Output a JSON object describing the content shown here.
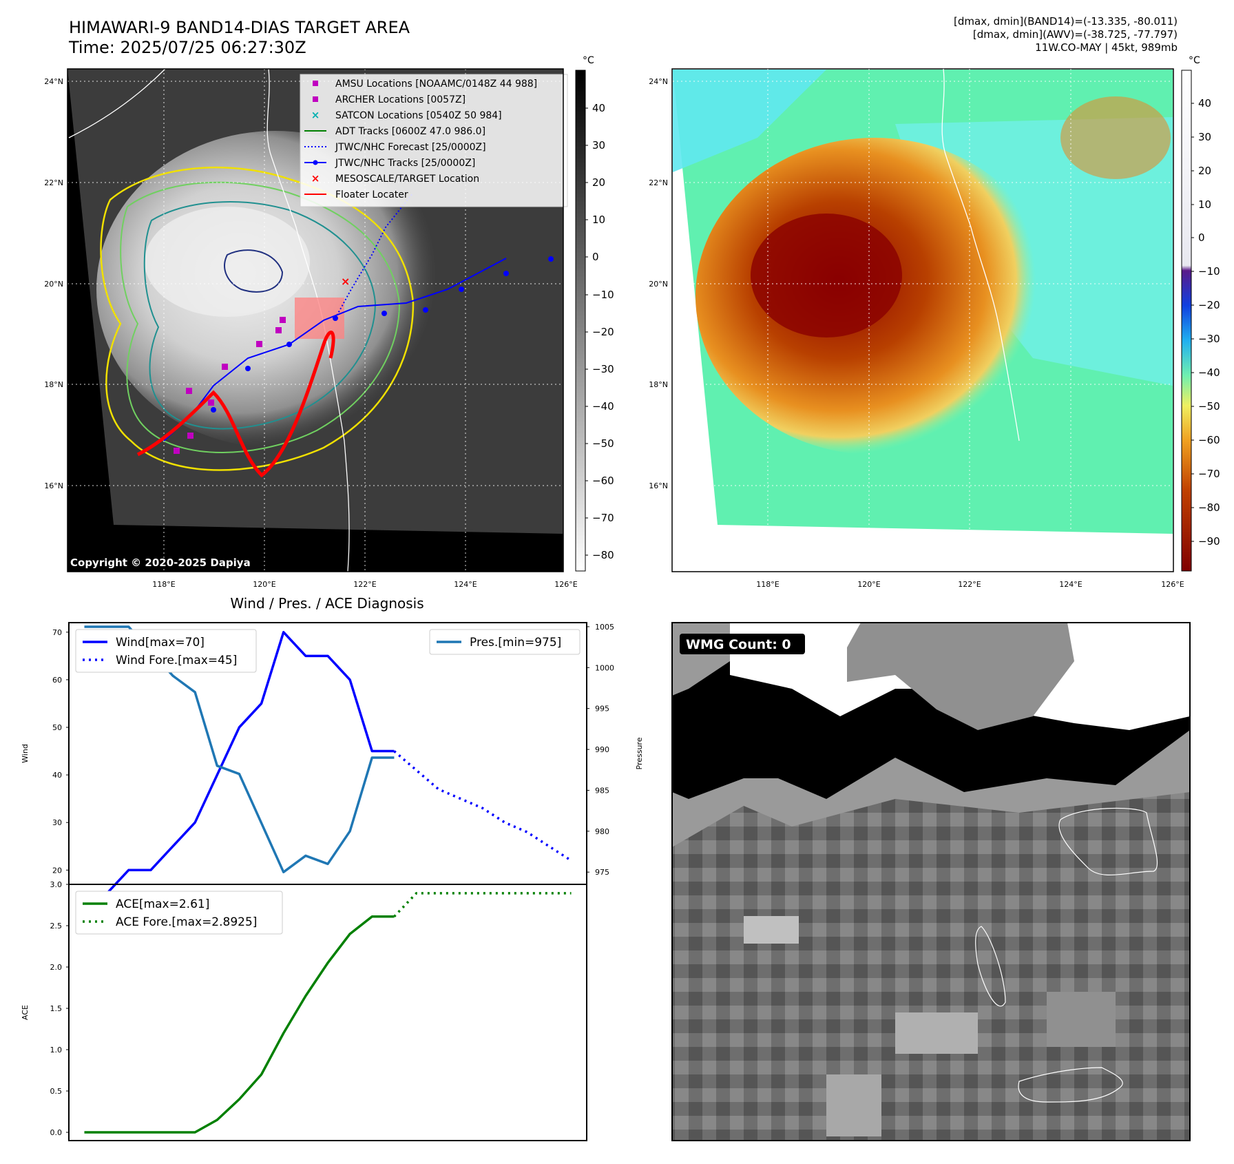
{
  "panel_tl": {
    "title_line1": "HIMAWARI-9 BAND14-DIAS TARGET AREA",
    "title_line2": "Time: 2025/07/25 06:27:30Z",
    "colorbar_unit": "°C",
    "colorbar_ticks": [
      "40",
      "30",
      "20",
      "10",
      "0",
      "−10",
      "−20",
      "−30",
      "−40",
      "−50",
      "−60",
      "−70",
      "−80"
    ],
    "lat_labels": [
      "24°N",
      "22°N",
      "20°N",
      "18°N",
      "16°N"
    ],
    "lon_labels": [
      "118°E",
      "120°E",
      "122°E",
      "124°E",
      "126°E"
    ],
    "copyright": "Copyright © 2020-2025 Dapiya",
    "legend": [
      {
        "label": "AMSU Locations [NOAAMC/0148Z 44 988]",
        "symbol": "square",
        "color": "#c000c0"
      },
      {
        "label": "ARCHER Locations [0057Z]",
        "symbol": "square",
        "color": "#c000c0"
      },
      {
        "label": "SATCON Locations [0540Z 50 984]",
        "symbol": "x",
        "color": "#00b0b0"
      },
      {
        "label": "ADT Tracks [0600Z 47.0 986.0]",
        "symbol": "line",
        "color": "#008000"
      },
      {
        "label": "JTWC/NHC Forecast [25/0000Z]",
        "symbol": "dotted",
        "color": "#0000ff"
      },
      {
        "label": "JTWC/NHC Tracks [25/0000Z]",
        "symbol": "line-dot",
        "color": "#0000ff"
      },
      {
        "label": "MESOSCALE/TARGET Location",
        "symbol": "x",
        "color": "#ff0000"
      },
      {
        "label": "Floater Locater",
        "symbol": "line",
        "color": "#ff0000"
      }
    ]
  },
  "panel_tr": {
    "info_line1": "[dmax, dmin](BAND14)=(-13.335, -80.011)",
    "info_line2": "[dmax, dmin](AWV)=(-38.725, -77.797)",
    "info_line3": "11W.CO-MAY | 45kt, 989mb",
    "colorbar_unit": "°C",
    "colorbar_ticks": [
      "40",
      "30",
      "20",
      "10",
      "0",
      "−10",
      "−20",
      "−30",
      "−40",
      "−50",
      "−60",
      "−70",
      "−80",
      "−90"
    ],
    "lat_labels": [
      "24°N",
      "22°N",
      "20°N",
      "18°N",
      "16°N"
    ],
    "lon_labels": [
      "118°E",
      "120°E",
      "122°E",
      "124°E",
      "126°E"
    ]
  },
  "panel_br": {
    "badge": "WMG Count: 0"
  },
  "colors": {
    "wind": "#0000ff",
    "pressure": "#1f77b4",
    "ace": "#008000",
    "track": "#0000ff",
    "floater": "#ff0000"
  },
  "chart_data": [
    {
      "type": "line",
      "title": "Wind / Pres. / ACE Diagnosis",
      "ylabel": "Wind",
      "y2label": "Pressure",
      "ylim": [
        17,
        72
      ],
      "y2lim": [
        973.5,
        1005.5
      ],
      "xlim": [
        -0.7,
        22.7
      ],
      "yticks": [
        "20",
        "30",
        "40",
        "50",
        "60",
        "70"
      ],
      "y2ticks": [
        "975",
        "980",
        "985",
        "990",
        "995",
        "1000",
        "1005"
      ],
      "series": [
        {
          "name": "Wind[max=70]",
          "axis": "left",
          "style": "solid",
          "x": [
            0,
            1,
            2,
            3,
            4,
            5,
            6,
            7,
            8,
            9,
            10,
            11,
            12,
            13,
            14
          ],
          "values": [
            15,
            15,
            20,
            20,
            25,
            30,
            40,
            50,
            55,
            70,
            65,
            65,
            60,
            45,
            45
          ]
        },
        {
          "name": "Wind Fore.[max=45]",
          "axis": "left",
          "style": "dotted",
          "x": [
            14,
            15,
            16,
            17,
            18,
            19,
            20,
            21,
            22
          ],
          "values": [
            45,
            41,
            37,
            35,
            33,
            30,
            28,
            25,
            22
          ]
        },
        {
          "name": "Pres.[min=975]",
          "axis": "right",
          "style": "solid",
          "x": [
            0,
            1,
            2,
            3,
            4,
            5,
            6,
            7,
            8,
            9,
            10,
            11,
            12,
            13,
            14
          ],
          "values": [
            1005,
            1005,
            1005,
            1002,
            999,
            997,
            988,
            987,
            981,
            975,
            977,
            976,
            980,
            989,
            989
          ]
        }
      ]
    },
    {
      "type": "line",
      "ylabel": "ACE",
      "ylim": [
        -0.1,
        3.0
      ],
      "xlim": [
        -0.7,
        22.7
      ],
      "yticks": [
        "0.0",
        "0.5",
        "1.0",
        "1.5",
        "2.0",
        "2.5",
        "3.0"
      ],
      "series": [
        {
          "name": "ACE[max=2.61]",
          "style": "solid",
          "x": [
            0,
            1,
            2,
            3,
            4,
            5,
            6,
            7,
            8,
            9,
            10,
            11,
            12,
            13,
            14
          ],
          "values": [
            0,
            0,
            0,
            0,
            0,
            0,
            0.15,
            0.4,
            0.7,
            1.2,
            1.65,
            2.05,
            2.4,
            2.61,
            2.61
          ]
        },
        {
          "name": "ACE Fore.[max=2.8925]",
          "style": "dotted",
          "x": [
            14,
            15,
            16,
            17,
            18,
            19,
            20,
            21,
            22
          ],
          "values": [
            2.61,
            2.8925,
            2.8925,
            2.8925,
            2.8925,
            2.8925,
            2.8925,
            2.8925,
            2.8925
          ]
        }
      ]
    }
  ]
}
